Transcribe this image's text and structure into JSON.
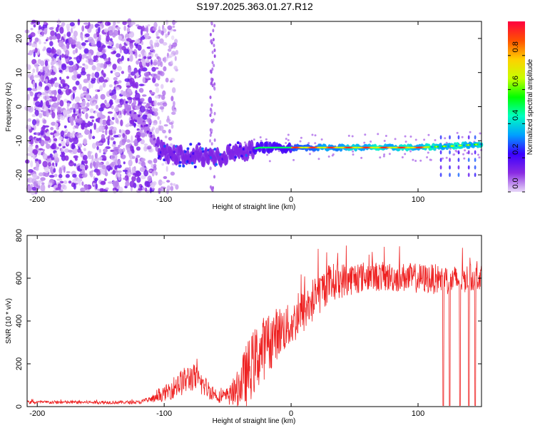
{
  "title": "S197.2025.363.01.27.R12",
  "chart_data": [
    {
      "type": "heatmap",
      "xlabel": "Height of straight line (km)",
      "ylabel": "Frequency (Hz)",
      "xlim": [
        -208,
        150
      ],
      "ylim": [
        -25,
        25
      ],
      "xticks": [
        -200,
        -100,
        0,
        100
      ],
      "yticks": [
        20,
        10,
        0,
        -10,
        -20
      ],
      "colorbar": {
        "label": "Normalized spectral amplitude",
        "range": [
          0,
          1
        ],
        "ticks": [
          "0.0",
          "0.2",
          "0.4",
          "0.6",
          "0.8"
        ],
        "colors": [
          "#e8d8f8",
          "#8a2be2",
          "#3a00ff",
          "#00a0ff",
          "#00ffc0",
          "#00ff00",
          "#c8ff00",
          "#ffd000",
          "#ff5000",
          "#ff0040"
        ]
      },
      "ridge": [
        {
          "x": -130,
          "y": 0
        },
        {
          "x": -115,
          "y": -6
        },
        {
          "x": -105,
          "y": -12
        },
        {
          "x": -95,
          "y": -14
        },
        {
          "x": -80,
          "y": -14
        },
        {
          "x": -60,
          "y": -15
        },
        {
          "x": -45,
          "y": -14
        },
        {
          "x": -35,
          "y": -13
        },
        {
          "x": -25,
          "y": -12
        },
        {
          "x": -10,
          "y": -12
        },
        {
          "x": 0,
          "y": -12
        },
        {
          "x": 50,
          "y": -12
        },
        {
          "x": 100,
          "y": -12
        },
        {
          "x": 130,
          "y": -11.5
        },
        {
          "x": 150,
          "y": -11
        }
      ]
    },
    {
      "type": "line",
      "xlabel": "Height of straight line (km)",
      "ylabel": "SNR (10 * v/v)",
      "xlim": [
        -208,
        150
      ],
      "ylim": [
        0,
        800
      ],
      "xticks": [
        -200,
        -100,
        0,
        100
      ],
      "yticks": [
        0,
        200,
        400,
        600,
        800
      ],
      "color": "#ee2020",
      "envelope": [
        {
          "x": -208,
          "mean": 20,
          "spread": 8
        },
        {
          "x": -120,
          "mean": 20,
          "spread": 8
        },
        {
          "x": -105,
          "mean": 40,
          "spread": 20
        },
        {
          "x": -90,
          "mean": 100,
          "spread": 60
        },
        {
          "x": -78,
          "mean": 140,
          "spread": 70
        },
        {
          "x": -65,
          "mean": 80,
          "spread": 45
        },
        {
          "x": -55,
          "mean": 40,
          "spread": 25
        },
        {
          "x": -45,
          "mean": 60,
          "spread": 60
        },
        {
          "x": -35,
          "mean": 150,
          "spread": 150
        },
        {
          "x": -25,
          "mean": 250,
          "spread": 160
        },
        {
          "x": -10,
          "mean": 350,
          "spread": 120
        },
        {
          "x": 0,
          "mean": 380,
          "spread": 100
        },
        {
          "x": 15,
          "mean": 480,
          "spread": 110
        },
        {
          "x": 30,
          "mean": 580,
          "spread": 90
        },
        {
          "x": 60,
          "mean": 610,
          "spread": 70
        },
        {
          "x": 100,
          "mean": 600,
          "spread": 70
        },
        {
          "x": 130,
          "mean": 590,
          "spread": 70
        },
        {
          "x": 150,
          "mean": 610,
          "spread": 60
        }
      ],
      "dropouts": [
        120,
        125,
        133,
        140,
        145
      ]
    }
  ]
}
